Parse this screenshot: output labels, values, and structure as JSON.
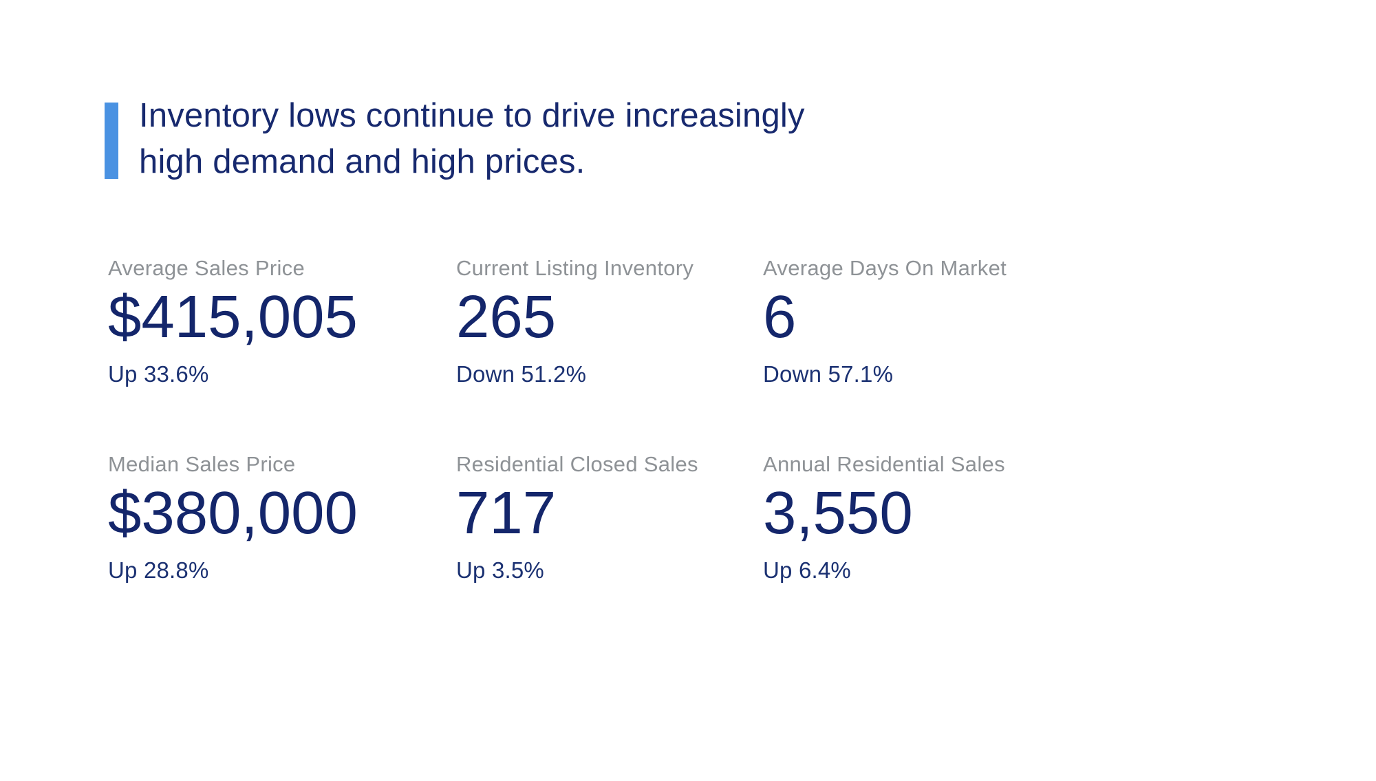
{
  "headline": {
    "line1": "Inventory lows continue to drive increasingly",
    "line2": "high demand and high prices."
  },
  "colors": {
    "accent_bar_blue": "#4a92e2",
    "headline_navy": "#17296e",
    "value_navy": "#14266b",
    "change_navy": "#1b3172",
    "label_gray": "#8e9296",
    "background": "#ffffff"
  },
  "stats": [
    {
      "label": "Average Sales Price",
      "value": "$415,005",
      "change": "Up 33.6%"
    },
    {
      "label": "Current Listing Inventory",
      "value": "265",
      "change": "Down 51.2%"
    },
    {
      "label": "Average Days On Market",
      "value": "6",
      "change": "Down 57.1%"
    },
    {
      "label": "Median Sales Price",
      "value": "$380,000",
      "change": "Up 28.8%"
    },
    {
      "label": "Residential Closed Sales",
      "value": "717",
      "change": "Up 3.5%"
    },
    {
      "label": "Annual Residential Sales",
      "value": "3,550",
      "change": "Up 6.4%"
    }
  ]
}
